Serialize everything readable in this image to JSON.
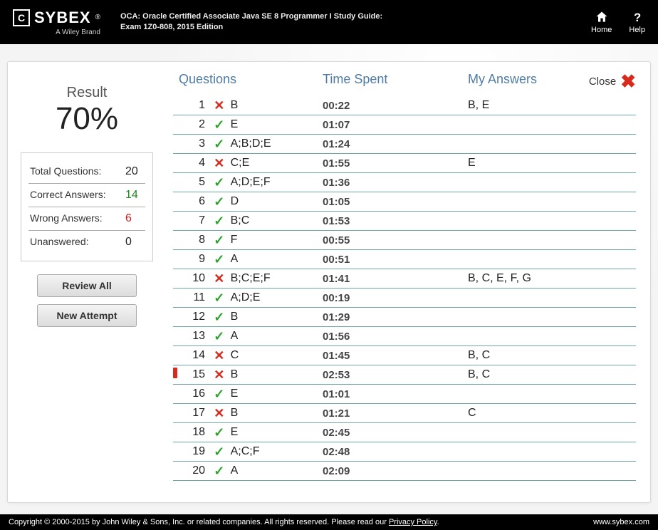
{
  "header": {
    "brand": "SYBEX",
    "brand_sub": "A Wiley Brand",
    "book_title_line1": "OCA: Oracle Certified Associate Java SE 8 Programmer I Study Guide:",
    "book_title_line2": "Exam 1Z0-808, 2015 Edition",
    "home_label": "Home",
    "help_label": "Help"
  },
  "result": {
    "label": "Result",
    "percent": "70%",
    "stats": {
      "total_label": "Total Questions:",
      "total_val": "20",
      "correct_label": "Correct Answers:",
      "correct_val": "14",
      "wrong_label": "Wrong Answers:",
      "wrong_val": "6",
      "unanswered_label": "Unanswered:",
      "unanswered_val": "0"
    },
    "review_btn": "Review All",
    "new_btn": "New Attempt"
  },
  "table": {
    "col_questions": "Questions",
    "col_time": "Time Spent",
    "col_my": "My Answers",
    "close_label": "Close",
    "correct_glyph": "✓",
    "wrong_glyph": "✕",
    "colors": {
      "correct": "#29a329",
      "wrong": "#d82a1c",
      "header_text": "#4f7ca5",
      "row_border": "#6ea7a7"
    }
  },
  "rows": [
    {
      "n": "1",
      "ok": false,
      "ans": "B",
      "time": "00:22",
      "my": "B, E",
      "flag": false
    },
    {
      "n": "2",
      "ok": true,
      "ans": "E",
      "time": "01:07",
      "my": "",
      "flag": false
    },
    {
      "n": "3",
      "ok": true,
      "ans": "A;B;D;E",
      "time": "01:24",
      "my": "",
      "flag": false
    },
    {
      "n": "4",
      "ok": false,
      "ans": "C;E",
      "time": "01:55",
      "my": "E",
      "flag": false
    },
    {
      "n": "5",
      "ok": true,
      "ans": "A;D;E;F",
      "time": "01:36",
      "my": "",
      "flag": false
    },
    {
      "n": "6",
      "ok": true,
      "ans": "D",
      "time": "01:05",
      "my": "",
      "flag": false
    },
    {
      "n": "7",
      "ok": true,
      "ans": "B;C",
      "time": "01:53",
      "my": "",
      "flag": false
    },
    {
      "n": "8",
      "ok": true,
      "ans": "F",
      "time": "00:55",
      "my": "",
      "flag": false
    },
    {
      "n": "9",
      "ok": true,
      "ans": "A",
      "time": "00:51",
      "my": "",
      "flag": false
    },
    {
      "n": "10",
      "ok": false,
      "ans": "B;C;E;F",
      "time": "01:41",
      "my": "B, C, E, F, G",
      "flag": false
    },
    {
      "n": "11",
      "ok": true,
      "ans": "A;D;E",
      "time": "00:19",
      "my": "",
      "flag": false
    },
    {
      "n": "12",
      "ok": true,
      "ans": "B",
      "time": "01:29",
      "my": "",
      "flag": false
    },
    {
      "n": "13",
      "ok": true,
      "ans": "A",
      "time": "01:56",
      "my": "",
      "flag": false
    },
    {
      "n": "14",
      "ok": false,
      "ans": "C",
      "time": "01:45",
      "my": "B, C",
      "flag": false
    },
    {
      "n": "15",
      "ok": false,
      "ans": "B",
      "time": "02:53",
      "my": "B, C",
      "flag": true
    },
    {
      "n": "16",
      "ok": true,
      "ans": "E",
      "time": "01:01",
      "my": "",
      "flag": false
    },
    {
      "n": "17",
      "ok": false,
      "ans": "B",
      "time": "01:21",
      "my": "C",
      "flag": false
    },
    {
      "n": "18",
      "ok": true,
      "ans": "E",
      "time": "02:45",
      "my": "",
      "flag": false
    },
    {
      "n": "19",
      "ok": true,
      "ans": "A;C;F",
      "time": "02:48",
      "my": "",
      "flag": false
    },
    {
      "n": "20",
      "ok": true,
      "ans": "A",
      "time": "02:09",
      "my": "",
      "flag": false
    }
  ],
  "footer": {
    "copyright_prefix": "Copyright © 2000-2015 by John Wiley & Sons, Inc. or related companies. All rights reserved. Please read our ",
    "privacy_link": "Privacy Policy",
    "copyright_suffix": ".",
    "site": "www.sybex.com"
  }
}
